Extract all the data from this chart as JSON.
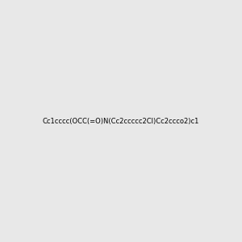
{
  "smiles": "Cc1cccc(OCC(=O)N(Cc2ccccc2Cl)Cc2ccco2)c1",
  "image_size": 300,
  "background_color": "#e8e8e8",
  "title": "",
  "atom_colors": {
    "N": "#0000ff",
    "O": "#ff0000",
    "Cl": "#00cc00"
  }
}
